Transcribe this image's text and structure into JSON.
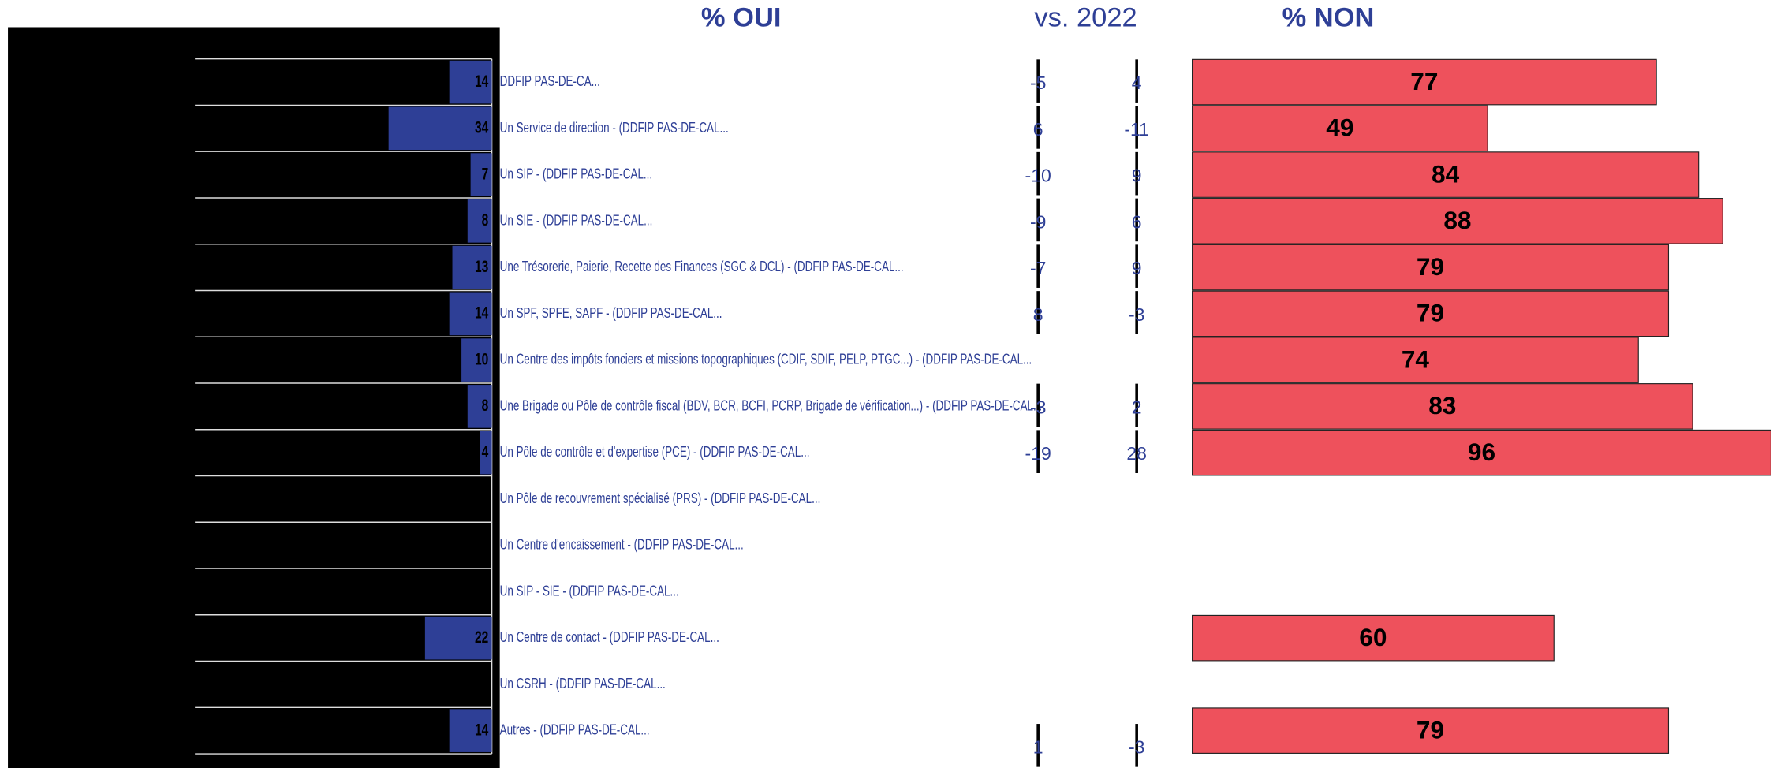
{
  "chart_data": {
    "type": "bar",
    "comparison_label": "vs. 2022",
    "categories": [
      "DDFIP PAS-DE-CA...",
      "Un Service de direction - (DDFIP PAS-DE-CAL...",
      "Un SIP - (DDFIP PAS-DE-CAL...",
      "Un SIE - (DDFIP PAS-DE-CAL...",
      "Une Trésorerie, Paierie, Recette des Finances (SGC & DCL) - (DDFIP PAS-DE-CAL...",
      "Un SPF, SPFE, SAPF - (DDFIP PAS-DE-CAL...",
      "Un Centre des impôts fonciers et missions topographiques (CDIF, SDIF, PELP, PTGC...) - (DDFIP PAS-DE-CAL...",
      "Une Brigade ou Pôle de contrôle fiscal (BDV, BCR, BCFI, PCRP, Brigade de vérification...) - (DDFIP PAS-DE-CAL...",
      "Un Pôle de contrôle et d'expertise (PCE) - (DDFIP PAS-DE-CAL...",
      "Un Pôle de recouvrement spécialisé (PRS) - (DDFIP PAS-DE-CAL...",
      "Un Centre d'encaissement - (DDFIP PAS-DE-CAL...",
      "Un SIP - SIE - (DDFIP PAS-DE-CAL...",
      "Un Centre de contact - (DDFIP PAS-DE-CAL...",
      "Un CSRH - (DDFIP PAS-DE-CAL...",
      "Autres - (DDFIP PAS-DE-CAL..."
    ],
    "series": [
      {
        "name": "% OUI",
        "color": "#2e3f96",
        "values": [
          14,
          34,
          7,
          8,
          13,
          14,
          10,
          8,
          4,
          null,
          null,
          null,
          22,
          null,
          14
        ]
      },
      {
        "color": "#2e3f96",
        "values": [
          -5,
          6,
          -10,
          -9,
          -7,
          8,
          null,
          -3,
          -19,
          null,
          null,
          null,
          null,
          null,
          1
        ]
      },
      {
        "color": "#2e3f96",
        "values": [
          4,
          -11,
          9,
          6,
          9,
          -3,
          null,
          2,
          28,
          null,
          null,
          null,
          null,
          null,
          -3
        ]
      },
      {
        "name": "% NON",
        "color": "#ee515c",
        "values": [
          77,
          49,
          84,
          88,
          79,
          79,
          74,
          83,
          96,
          null,
          null,
          null,
          60,
          null,
          79
        ]
      }
    ]
  }
}
